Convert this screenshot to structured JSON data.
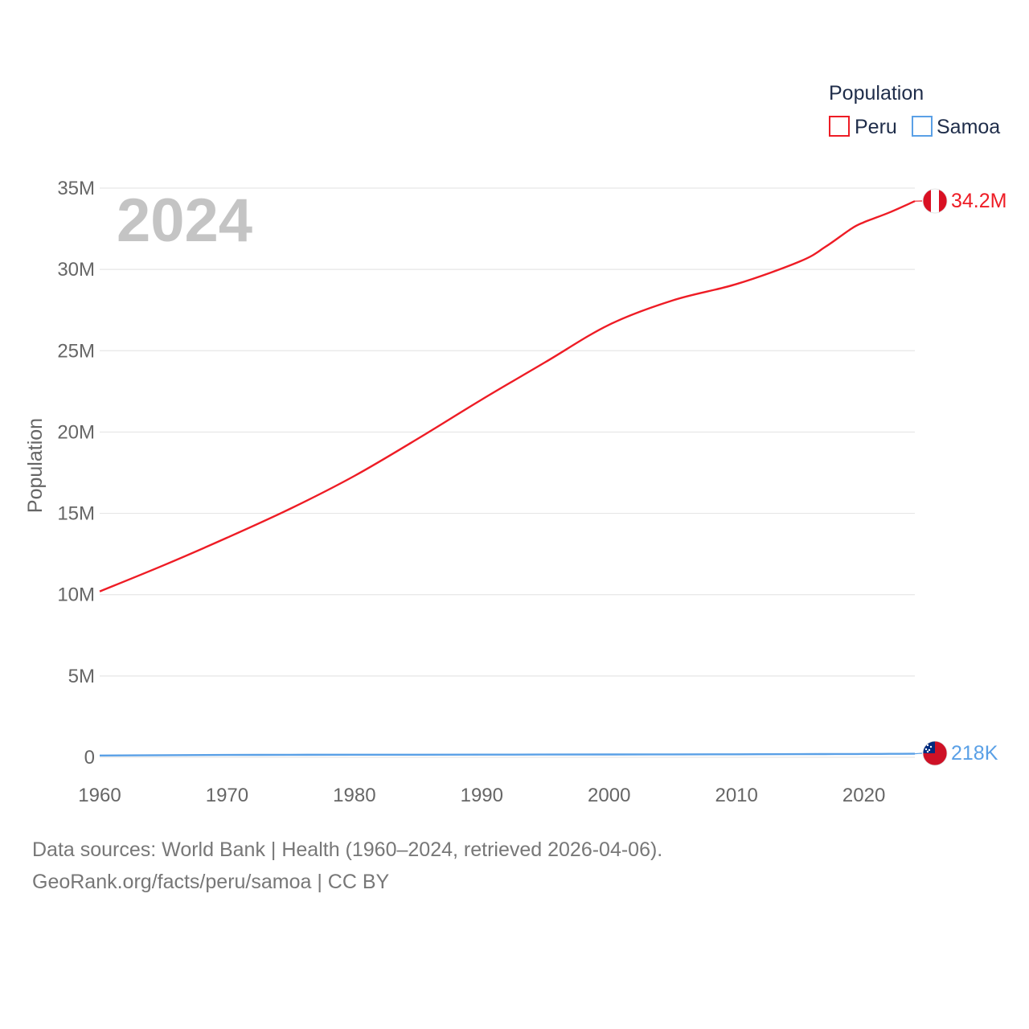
{
  "chart_data": {
    "type": "line",
    "title": "",
    "year_label": "2024",
    "xlabel": "",
    "ylabel": "Population",
    "legend_title": "Population",
    "legend_position": "top-right",
    "xlim": [
      1960,
      2024
    ],
    "ylim": [
      0,
      35000000
    ],
    "x_ticks": [
      1960,
      1970,
      1980,
      1990,
      2000,
      2010,
      2020
    ],
    "x_tick_labels": [
      "1960",
      "1970",
      "1980",
      "1990",
      "2000",
      "2010",
      "2020"
    ],
    "y_ticks": [
      0,
      5000000,
      10000000,
      15000000,
      20000000,
      25000000,
      30000000,
      35000000
    ],
    "y_tick_labels": [
      "0",
      "5M",
      "10M",
      "15M",
      "20M",
      "25M",
      "30M",
      "35M"
    ],
    "grid": true,
    "x": [
      1960,
      1965,
      1970,
      1975,
      1980,
      1985,
      1990,
      1995,
      2000,
      2005,
      2010,
      2015,
      2017,
      2019,
      2020,
      2022,
      2024
    ],
    "series": [
      {
        "name": "Peru",
        "color": "#ee1c25",
        "end_label": "34.2M",
        "flag_icon": "peru-flag-icon",
        "values": [
          10200000,
          11800000,
          13500000,
          15300000,
          17300000,
          19600000,
          22000000,
          24300000,
          26600000,
          28100000,
          29100000,
          30500000,
          31400000,
          32500000,
          32900000,
          33500000,
          34200000
        ]
      },
      {
        "name": "Samoa",
        "color": "#5aa0e6",
        "end_label": "218K",
        "flag_icon": "samoa-flag-icon",
        "values": [
          109000,
          127000,
          143000,
          152000,
          156000,
          160000,
          163000,
          168000,
          175000,
          180000,
          184000,
          193000,
          198000,
          203000,
          206000,
          212000,
          218000
        ]
      }
    ]
  },
  "footer": {
    "line1": "Data sources: World Bank | Health (1960–2024, retrieved 2026-04-06).",
    "line2": "GeoRank.org/facts/peru/samoa | CC BY"
  }
}
